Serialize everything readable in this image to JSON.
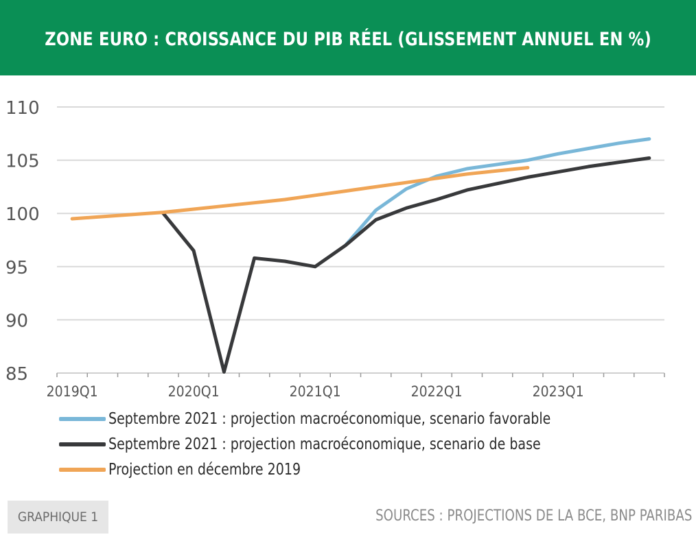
{
  "header": {
    "title": "ZONE EURO : CROISSANCE DU PIB RÉEL (GLISSEMENT ANNUEL EN %)"
  },
  "footer": {
    "badge": "GRAPHIQUE 1",
    "sources": "SOURCES : PROJECTIONS DE LA BCE, BNP PARIBAS"
  },
  "colors": {
    "header_bg": "#0a8f55",
    "favorable": "#79b7d8",
    "base": "#38393b",
    "projection": "#f0a556",
    "grid": "#d9d9d9"
  },
  "chart_data": {
    "type": "line",
    "x": [
      "2019Q1",
      "2019Q2",
      "2019Q3",
      "2019Q4",
      "2020Q1",
      "2020Q2",
      "2020Q3",
      "2020Q4",
      "2021Q1",
      "2021Q2",
      "2021Q3",
      "2021Q4",
      "2022Q1",
      "2022Q2",
      "2022Q3",
      "2022Q4",
      "2023Q1",
      "2023Q2",
      "2023Q3",
      "2023Q4"
    ],
    "x_tick_labels": [
      "2019Q1",
      "2020Q1",
      "2021Q1",
      "2022Q1",
      "2023Q1"
    ],
    "ylim": [
      85,
      110
    ],
    "y_ticks": [
      85,
      90,
      95,
      100,
      105,
      110
    ],
    "grid": true,
    "legend_position": "bottom",
    "series": [
      {
        "name": "Septembre 2021 : projection macroéconomique, scenario favorable",
        "color": "#79b7d8",
        "values": [
          null,
          null,
          null,
          null,
          null,
          null,
          null,
          null,
          null,
          97.0,
          100.3,
          102.3,
          103.5,
          104.2,
          104.6,
          105.0,
          105.6,
          106.1,
          106.6,
          107.0
        ]
      },
      {
        "name": "Septembre 2021 : projection macroéconomique, scenario de base",
        "color": "#38393b",
        "values": [
          null,
          null,
          null,
          100.0,
          96.5,
          85.1,
          95.8,
          95.5,
          95.0,
          97.0,
          99.4,
          100.5,
          101.3,
          102.2,
          102.8,
          103.4,
          103.9,
          104.4,
          104.8,
          105.2
        ]
      },
      {
        "name": "Projection en décembre 2019",
        "color": "#f0a556",
        "values": [
          99.5,
          99.7,
          99.9,
          100.1,
          100.4,
          100.7,
          101.0,
          101.3,
          101.7,
          102.1,
          102.5,
          102.9,
          103.3,
          103.7,
          104.0,
          104.3,
          null,
          null,
          null,
          null
        ]
      }
    ]
  }
}
